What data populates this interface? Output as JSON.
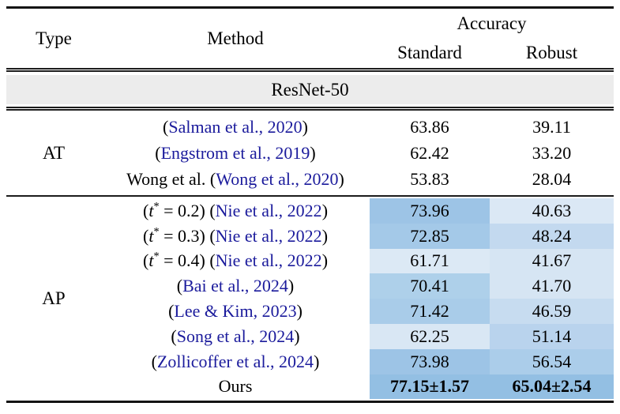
{
  "colors": {
    "cite": "#1b1b9c",
    "band_bg": "#ececec",
    "rule": "#1c1c1c"
  },
  "header": {
    "type": "Type",
    "method": "Method",
    "accuracy": "Accuracy",
    "standard": "Standard",
    "robust": "Robust"
  },
  "group_header": "ResNet-50",
  "sections": [
    {
      "type_label": "AT",
      "rows": [
        {
          "method": [
            {
              "k": "plain",
              "t": "("
            },
            {
              "k": "cite",
              "t": "Salman et al., 2020"
            },
            {
              "k": "plain",
              "t": ")"
            }
          ],
          "standard": {
            "v": "63.86",
            "bg": null,
            "bold": false
          },
          "robust": {
            "v": "39.11",
            "bg": null,
            "bold": false
          }
        },
        {
          "method": [
            {
              "k": "plain",
              "t": "("
            },
            {
              "k": "cite",
              "t": "Engstrom et al., 2019"
            },
            {
              "k": "plain",
              "t": ")"
            }
          ],
          "standard": {
            "v": "62.42",
            "bg": null,
            "bold": false
          },
          "robust": {
            "v": "33.20",
            "bg": null,
            "bold": false
          }
        },
        {
          "method": [
            {
              "k": "plain",
              "t": "Wong et al. ("
            },
            {
              "k": "cite",
              "t": "Wong et al., 2020"
            },
            {
              "k": "plain",
              "t": ")"
            }
          ],
          "standard": {
            "v": "53.83",
            "bg": null,
            "bold": false
          },
          "robust": {
            "v": "28.04",
            "bg": null,
            "bold": false
          }
        }
      ]
    },
    {
      "type_label": "AP",
      "rows": [
        {
          "method": [
            {
              "k": "tstar",
              "t": "0.2"
            },
            {
              "k": "plain",
              "t": " ("
            },
            {
              "k": "cite",
              "t": "Nie et al., 2022"
            },
            {
              "k": "plain",
              "t": ")"
            }
          ],
          "standard": {
            "v": "73.96",
            "bg": "#9dc4e6",
            "bold": false
          },
          "robust": {
            "v": "40.63",
            "bg": "#dbe8f5",
            "bold": false
          }
        },
        {
          "method": [
            {
              "k": "tstar",
              "t": "0.3"
            },
            {
              "k": "plain",
              "t": " ("
            },
            {
              "k": "cite",
              "t": "Nie et al., 2022"
            },
            {
              "k": "plain",
              "t": ")"
            }
          ],
          "standard": {
            "v": "72.85",
            "bg": "#a4c9e8",
            "bold": false
          },
          "robust": {
            "v": "48.24",
            "bg": "#c3d9ef",
            "bold": false
          }
        },
        {
          "method": [
            {
              "k": "tstar",
              "t": "0.4"
            },
            {
              "k": "plain",
              "t": " ("
            },
            {
              "k": "cite",
              "t": "Nie et al., 2022"
            },
            {
              "k": "plain",
              "t": ")"
            }
          ],
          "standard": {
            "v": "61.71",
            "bg": "#dce9f5",
            "bold": false
          },
          "robust": {
            "v": "41.67",
            "bg": "#d6e5f3",
            "bold": false
          }
        },
        {
          "method": [
            {
              "k": "plain",
              "t": "("
            },
            {
              "k": "cite",
              "t": "Bai et al., 2024"
            },
            {
              "k": "plain",
              "t": ")"
            }
          ],
          "standard": {
            "v": "70.41",
            "bg": "#aed0ea",
            "bold": false
          },
          "robust": {
            "v": "41.70",
            "bg": "#d6e5f3",
            "bold": false
          }
        },
        {
          "method": [
            {
              "k": "plain",
              "t": "("
            },
            {
              "k": "cite",
              "t": "Lee & Kim, 2023"
            },
            {
              "k": "plain",
              "t": ")"
            }
          ],
          "standard": {
            "v": "71.42",
            "bg": "#a9cce9",
            "bold": false
          },
          "robust": {
            "v": "46.59",
            "bg": "#c7dcf0",
            "bold": false
          }
        },
        {
          "method": [
            {
              "k": "plain",
              "t": "("
            },
            {
              "k": "cite",
              "t": "Song et al., 2024"
            },
            {
              "k": "plain",
              "t": ")"
            }
          ],
          "standard": {
            "v": "62.25",
            "bg": "#d9e7f4",
            "bold": false
          },
          "robust": {
            "v": "51.14",
            "bg": "#b9d3ed",
            "bold": false
          }
        },
        {
          "method": [
            {
              "k": "plain",
              "t": "("
            },
            {
              "k": "cite",
              "t": "Zollicoffer et al., 2024"
            },
            {
              "k": "plain",
              "t": ")"
            }
          ],
          "standard": {
            "v": "73.98",
            "bg": "#9dc4e6",
            "bold": false
          },
          "robust": {
            "v": "56.54",
            "bg": "#abcdea",
            "bold": false
          }
        },
        {
          "method": [
            {
              "k": "plain",
              "t": "Ours"
            }
          ],
          "standard": {
            "v": "77.15±1.57",
            "bg": "#93bfe3",
            "bold": true
          },
          "robust": {
            "v": "65.04±2.54",
            "bg": "#93bfe3",
            "bold": true
          }
        }
      ]
    }
  ]
}
